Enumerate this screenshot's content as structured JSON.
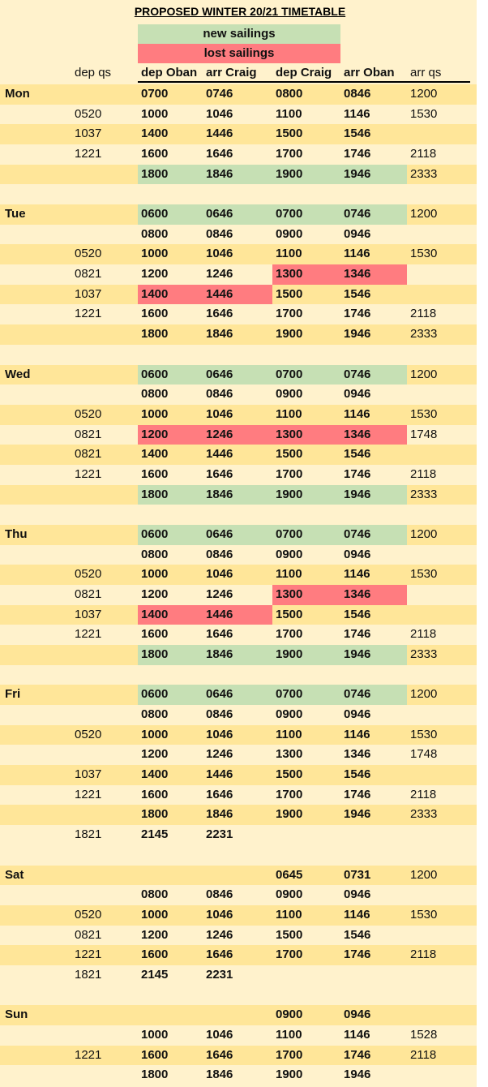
{
  "title": "PROPOSED WINTER 20/21 TIMETABLE",
  "legend": [
    {
      "label": "new sailings",
      "color": "#c6e0b4"
    },
    {
      "label": "lost sailings",
      "color": "#ff7c80"
    }
  ],
  "headers": [
    "dep qs",
    "dep Oban",
    "arr Craig",
    "dep Craig",
    "arr Oban",
    "arr qs"
  ],
  "days": [
    {
      "day": "Mon",
      "rows": [
        {
          "cells": [
            null,
            "0700",
            "0746",
            "0800",
            "0846",
            "1200"
          ]
        },
        {
          "cells": [
            "0520",
            "1000",
            "1046",
            "1100",
            "1146",
            "1530"
          ]
        },
        {
          "cells": [
            "1037",
            "1400",
            "1446",
            "1500",
            "1546",
            null
          ]
        },
        {
          "cells": [
            "1221",
            "1600",
            "1646",
            "1700",
            "1746",
            "2118"
          ]
        },
        {
          "cells": [
            null,
            "1800",
            "1846",
            "1900",
            "1946",
            "2333"
          ],
          "shaded": {
            "legend": 0,
            "cells": [
              1,
              2,
              3,
              4
            ]
          }
        }
      ]
    },
    {
      "day": "Tue",
      "rows": [
        {
          "cells": [
            null,
            "0600",
            "0646",
            "0700",
            "0746",
            "1200"
          ],
          "shaded": {
            "legend": 0,
            "cells": [
              1,
              2,
              3,
              4
            ]
          }
        },
        {
          "cells": [
            null,
            "0800",
            "0846",
            "0900",
            "0946",
            null
          ]
        },
        {
          "cells": [
            "0520",
            "1000",
            "1046",
            "1100",
            "1146",
            "1530"
          ]
        },
        {
          "cells": [
            "0821",
            "1200",
            "1246",
            "1300",
            "1346",
            null
          ],
          "shaded": {
            "legend": 1,
            "cells": [
              3,
              4
            ]
          }
        },
        {
          "cells": [
            "1037",
            "1400",
            "1446",
            "1500",
            "1546",
            null
          ],
          "shaded": {
            "legend": 1,
            "cells": [
              1,
              2
            ]
          }
        },
        {
          "cells": [
            "1221",
            "1600",
            "1646",
            "1700",
            "1746",
            "2118"
          ]
        },
        {
          "cells": [
            null,
            "1800",
            "1846",
            "1900",
            "1946",
            "2333"
          ]
        }
      ]
    },
    {
      "day": "Wed",
      "rows": [
        {
          "cells": [
            null,
            "0600",
            "0646",
            "0700",
            "0746",
            "1200"
          ],
          "shaded": {
            "legend": 0,
            "cells": [
              1,
              2,
              3,
              4
            ]
          }
        },
        {
          "cells": [
            null,
            "0800",
            "0846",
            "0900",
            "0946",
            null
          ]
        },
        {
          "cells": [
            "0520",
            "1000",
            "1046",
            "1100",
            "1146",
            "1530"
          ]
        },
        {
          "cells": [
            "0821",
            "1200",
            "1246",
            "1300",
            "1346",
            "1748"
          ],
          "shaded": {
            "legend": 1,
            "cells": [
              1,
              2,
              3,
              4
            ]
          }
        },
        {
          "cells": [
            "0821",
            "1400",
            "1446",
            "1500",
            "1546",
            null
          ]
        },
        {
          "cells": [
            "1221",
            "1600",
            "1646",
            "1700",
            "1746",
            "2118"
          ]
        },
        {
          "cells": [
            null,
            "1800",
            "1846",
            "1900",
            "1946",
            "2333"
          ],
          "shaded": {
            "legend": 0,
            "cells": [
              1,
              2,
              3,
              4
            ]
          }
        }
      ]
    },
    {
      "day": "Thu",
      "rows": [
        {
          "cells": [
            null,
            "0600",
            "0646",
            "0700",
            "0746",
            "1200"
          ],
          "shaded": {
            "legend": 0,
            "cells": [
              1,
              2,
              3,
              4
            ]
          }
        },
        {
          "cells": [
            null,
            "0800",
            "0846",
            "0900",
            "0946",
            null
          ]
        },
        {
          "cells": [
            "0520",
            "1000",
            "1046",
            "1100",
            "1146",
            "1530"
          ]
        },
        {
          "cells": [
            "0821",
            "1200",
            "1246",
            "1300",
            "1346",
            null
          ],
          "shaded": {
            "legend": 1,
            "cells": [
              3,
              4
            ]
          }
        },
        {
          "cells": [
            "1037",
            "1400",
            "1446",
            "1500",
            "1546",
            null
          ],
          "shaded": {
            "legend": 1,
            "cells": [
              1,
              2
            ]
          }
        },
        {
          "cells": [
            "1221",
            "1600",
            "1646",
            "1700",
            "1746",
            "2118"
          ]
        },
        {
          "cells": [
            null,
            "1800",
            "1846",
            "1900",
            "1946",
            "2333"
          ],
          "shaded": {
            "legend": 0,
            "cells": [
              1,
              2,
              3,
              4
            ]
          }
        }
      ]
    },
    {
      "day": "Fri",
      "rows": [
        {
          "cells": [
            null,
            "0600",
            "0646",
            "0700",
            "0746",
            "1200"
          ],
          "shaded": {
            "legend": 0,
            "cells": [
              1,
              2,
              3,
              4
            ]
          }
        },
        {
          "cells": [
            null,
            "0800",
            "0846",
            "0900",
            "0946",
            null
          ]
        },
        {
          "cells": [
            "0520",
            "1000",
            "1046",
            "1100",
            "1146",
            "1530"
          ]
        },
        {
          "cells": [
            null,
            "1200",
            "1246",
            "1300",
            "1346",
            "1748"
          ]
        },
        {
          "cells": [
            "1037",
            "1400",
            "1446",
            "1500",
            "1546",
            null
          ]
        },
        {
          "cells": [
            "1221",
            "1600",
            "1646",
            "1700",
            "1746",
            "2118"
          ]
        },
        {
          "cells": [
            null,
            "1800",
            "1846",
            "1900",
            "1946",
            "2333"
          ]
        },
        {
          "cells": [
            "1821",
            "2145",
            "2231",
            null,
            null,
            null
          ]
        }
      ]
    },
    {
      "day": "Sat",
      "rows": [
        {
          "cells": [
            null,
            null,
            null,
            "0645",
            "0731",
            "1200"
          ]
        },
        {
          "cells": [
            null,
            "0800",
            "0846",
            "0900",
            "0946",
            null
          ]
        },
        {
          "cells": [
            "0520",
            "1000",
            "1046",
            "1100",
            "1146",
            "1530"
          ]
        },
        {
          "cells": [
            "0821",
            "1200",
            "1246",
            "1500",
            "1546",
            null
          ]
        },
        {
          "cells": [
            "1221",
            "1600",
            "1646",
            "1700",
            "1746",
            "2118"
          ]
        },
        {
          "cells": [
            "1821",
            "2145",
            "2231",
            null,
            null,
            null
          ]
        }
      ]
    },
    {
      "day": "Sun",
      "rows": [
        {
          "cells": [
            null,
            null,
            null,
            "0900",
            "0946",
            null
          ]
        },
        {
          "cells": [
            null,
            "1000",
            "1046",
            "1100",
            "1146",
            "1528"
          ]
        },
        {
          "cells": [
            "1221",
            "1600",
            "1646",
            "1700",
            "1746",
            "2118"
          ]
        },
        {
          "cells": [
            null,
            "1800",
            "1846",
            "1900",
            "1946",
            null
          ]
        }
      ]
    }
  ]
}
